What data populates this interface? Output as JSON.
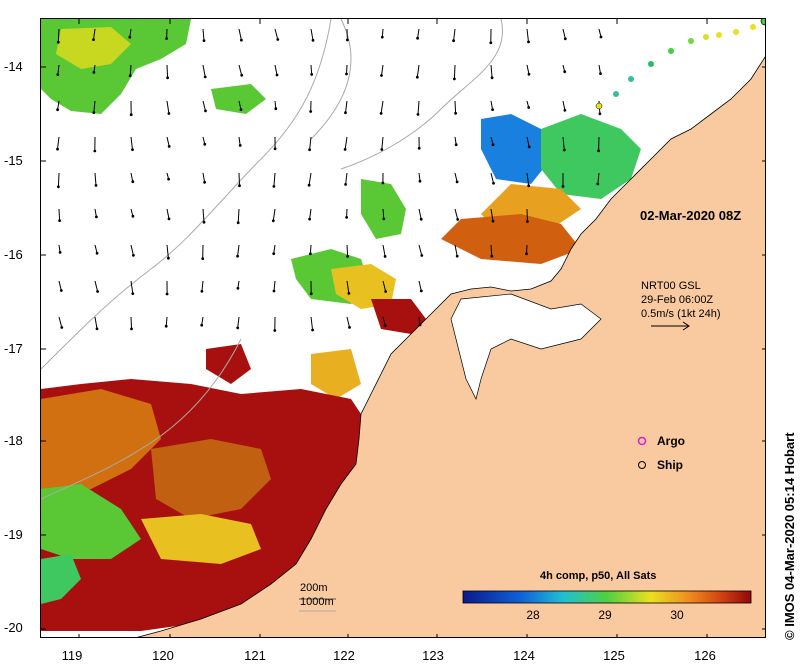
{
  "map": {
    "date_label": "02-Mar-2020 08Z",
    "current_label_line1": "NRT00 GSL",
    "current_label_line2": "29-Feb 06:00Z",
    "current_label_line3": "0.5m/s (1kt 24h)",
    "depth_label_1": "200m",
    "depth_label_2": "1000m",
    "credit": "IMOS 04-Mar-2020 05:14 Hobart",
    "legend": {
      "argo": "Argo",
      "ship": "Ship"
    },
    "colorbar": {
      "title": "4h comp, p50, All Sats",
      "ticks": [
        "28",
        "29",
        "30"
      ],
      "tick_values": [
        28,
        29,
        30
      ],
      "min": 27,
      "max": 31
    },
    "axes": {
      "lon_ticks": [
        "119",
        "120",
        "121",
        "122",
        "123",
        "124",
        "125",
        "126"
      ],
      "lat_ticks": [
        "-14",
        "-15",
        "-16",
        "-17",
        "-18",
        "-19",
        "-20"
      ],
      "lon_range": [
        118.65,
        126.75
      ],
      "lat_range": [
        -20.1,
        -13.5
      ]
    },
    "colors": {
      "land": "#f9c99f",
      "hot": "#a80f0f",
      "cold": "#0a2b9e",
      "mid_green": "#5ac834"
    }
  }
}
